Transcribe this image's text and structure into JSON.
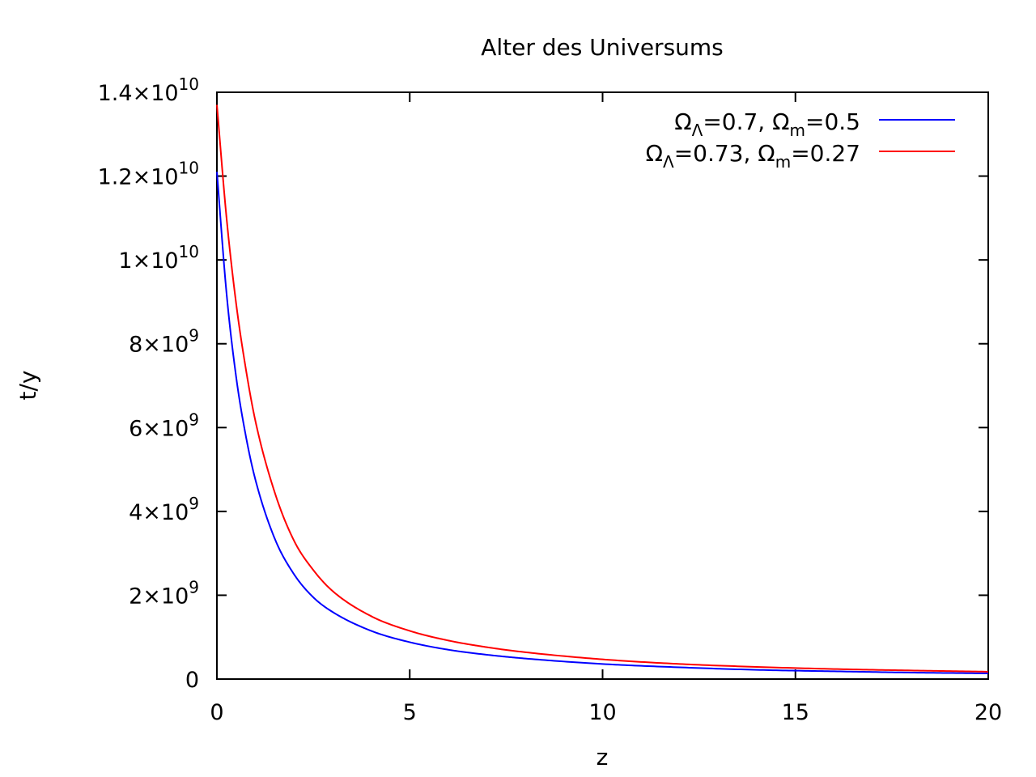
{
  "chart_data": {
    "type": "line",
    "title": "Alter des Universums",
    "xlabel": "z",
    "ylabel": "t/y",
    "xlim": [
      0,
      20
    ],
    "ylim": [
      0,
      14000000000
    ],
    "grid": false,
    "legend_position": "top-right",
    "x_ticks": [
      {
        "value": 0,
        "label": "0"
      },
      {
        "value": 5,
        "label": "5"
      },
      {
        "value": 10,
        "label": "10"
      },
      {
        "value": 15,
        "label": "15"
      },
      {
        "value": 20,
        "label": "20"
      }
    ],
    "y_ticks": [
      {
        "value": 0,
        "mantissa": "0",
        "times": "",
        "base": "",
        "exp": ""
      },
      {
        "value": 2000000000,
        "mantissa": "2",
        "times": "×",
        "base": "10",
        "exp": "9"
      },
      {
        "value": 4000000000,
        "mantissa": "4",
        "times": "×",
        "base": "10",
        "exp": "9"
      },
      {
        "value": 6000000000,
        "mantissa": "6",
        "times": "×",
        "base": "10",
        "exp": "9"
      },
      {
        "value": 8000000000,
        "mantissa": "8",
        "times": "×",
        "base": "10",
        "exp": "9"
      },
      {
        "value": 10000000000,
        "mantissa": "1",
        "times": "×",
        "base": "10",
        "exp": "10"
      },
      {
        "value": 12000000000,
        "mantissa": "1.2",
        "times": "×",
        "base": "10",
        "exp": "10"
      },
      {
        "value": 14000000000,
        "mantissa": "1.4",
        "times": "×",
        "base": "10",
        "exp": "10"
      }
    ],
    "x": [
      0,
      0.25,
      0.5,
      0.75,
      1,
      1.5,
      2,
      2.5,
      3,
      4,
      5,
      6,
      7,
      8,
      10,
      12,
      14,
      16,
      18,
      20
    ],
    "series": [
      {
        "name_parts": {
          "omega1": "Ω",
          "sub1": "Λ",
          "val1": "=0.7, ",
          "omega2": "Ω",
          "sub2": "m",
          "val2": "=0.5"
        },
        "color": "#0000ff",
        "values": [
          12100000000.0,
          9200000000.0,
          7200000000.0,
          5800000000.0,
          4750000000.0,
          3350000000.0,
          2500000000.0,
          1950000000.0,
          1600000000.0,
          1150000000.0,
          880000000.0,
          700000000.0,
          580000000.0,
          490000000.0,
          360000000.0,
          280000000.0,
          220000000.0,
          185000000.0,
          155000000.0,
          135000000.0
        ]
      },
      {
        "name_parts": {
          "omega1": "Ω",
          "sub1": "Λ",
          "val1": "=0.73, ",
          "omega2": "Ω",
          "sub2": "m",
          "val2": "=0.27"
        },
        "color": "#ff0000",
        "values": [
          13700000000.0,
          11000000000.0,
          8950000000.0,
          7400000000.0,
          6150000000.0,
          4450000000.0,
          3300000000.0,
          2600000000.0,
          2100000000.0,
          1500000000.0,
          1150000000.0,
          920000000.0,
          760000000.0,
          640000000.0,
          470000000.0,
          360000000.0,
          290000000.0,
          240000000.0,
          205000000.0,
          175000000.0
        ]
      }
    ]
  }
}
